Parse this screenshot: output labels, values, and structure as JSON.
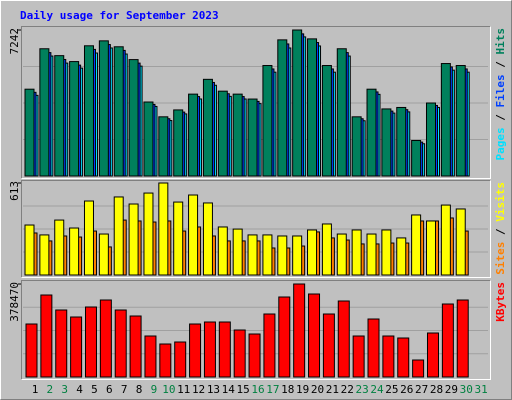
{
  "title": "Daily usage for September 2023",
  "legend_separator": "/",
  "weekend_color": "#008040",
  "weekend_days": [
    2,
    3,
    9,
    10,
    16,
    17,
    23,
    24,
    30,
    31
  ],
  "chart_data": [
    {
      "type": "bar",
      "ylim": [
        0,
        7242
      ],
      "yticks": [
        7242
      ],
      "grid": true,
      "series": [
        {
          "name": "Pages",
          "color": "#00e0ff",
          "values": [
            4000,
            5950,
            5600,
            5350,
            6100,
            6350,
            6050,
            5450,
            3450,
            2750,
            3080,
            3820,
            4500,
            3950,
            3820,
            3590,
            5150,
            6350,
            6900,
            6450,
            5150,
            5950,
            2740,
            4050,
            3120,
            3180,
            1600,
            3400,
            5250,
            5150,
            null
          ]
        },
        {
          "name": "Files",
          "color": "#0040ff",
          "values": [
            4150,
            6120,
            5780,
            5500,
            6280,
            6520,
            6230,
            5600,
            3550,
            2840,
            3170,
            3940,
            4640,
            4080,
            3940,
            3700,
            5310,
            6550,
            7050,
            6620,
            5310,
            6120,
            2840,
            4170,
            3220,
            3290,
            1680,
            3500,
            5410,
            5310,
            null
          ]
        },
        {
          "name": "Hits",
          "color": "#00805c",
          "values": [
            4306,
            6312,
            5970,
            5676,
            6459,
            6704,
            6410,
            5774,
            3670,
            2936,
            3278,
            4061,
            4795,
            4208,
            4061,
            3817,
            5480,
            6753,
            7242,
            6802,
            5480,
            6312,
            2936,
            4306,
            3327,
            3400,
            1762,
            3621,
            5578,
            5480,
            null
          ]
        }
      ]
    },
    {
      "type": "bar",
      "ylim": [
        0,
        613
      ],
      "yticks": [
        613
      ],
      "grid": true,
      "series": [
        {
          "name": "Sites",
          "color": "#ff8000",
          "values": [
            280,
            227,
            260,
            253,
            293,
            187,
            366,
            360,
            353,
            360,
            293,
            320,
            260,
            227,
            227,
            227,
            180,
            180,
            193,
            287,
            247,
            233,
            207,
            207,
            213,
            213,
            360,
            360,
            380,
            293,
            null
          ]
        },
        {
          "name": "Visits",
          "color": "#ffff00",
          "values": [
            333,
            267,
            366,
            313,
            493,
            273,
            520,
            473,
            546,
            613,
            486,
            533,
            480,
            320,
            306,
            267,
            267,
            260,
            260,
            300,
            340,
            273,
            300,
            273,
            300,
            247,
            400,
            360,
            466,
            440,
            null
          ]
        }
      ]
    },
    {
      "type": "bar",
      "ylim": [
        0,
        378470
      ],
      "yticks": [
        378470
      ],
      "grid": true,
      "categories": [
        "1",
        "2",
        "3",
        "4",
        "5",
        "6",
        "7",
        "8",
        "9",
        "10",
        "11",
        "12",
        "13",
        "14",
        "15",
        "16",
        "17",
        "18",
        "19",
        "20",
        "21",
        "22",
        "23",
        "24",
        "25",
        "26",
        "27",
        "28",
        "29",
        "30",
        "31"
      ],
      "series": [
        {
          "name": "KBytes",
          "color": "#ff0000",
          "values": [
            215690,
            333710,
            272660,
            244180,
            284870,
            313360,
            272660,
            248240,
            166850,
            134300,
            142440,
            215690,
            223830,
            223830,
            191270,
            174990,
            256380,
            325570,
            378470,
            337780,
            256380,
            309290,
            166850,
            236040,
            166850,
            158710,
            69180,
            179060,
            297080,
            313360,
            null
          ]
        }
      ]
    }
  ]
}
